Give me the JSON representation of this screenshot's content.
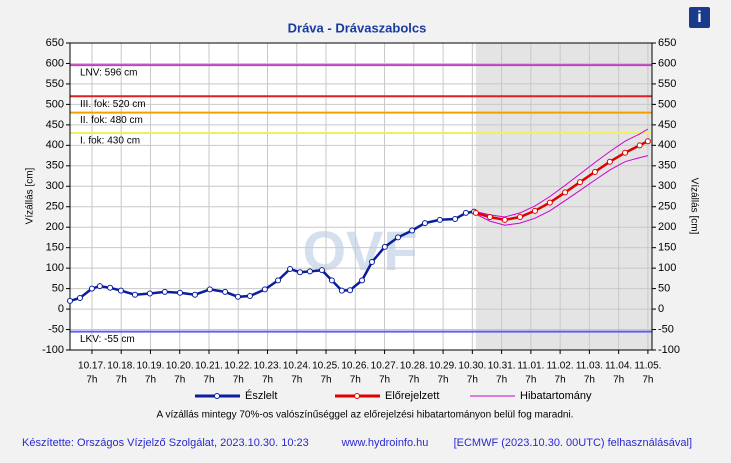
{
  "chart_data": {
    "type": "line",
    "title": "Dráva - Drávaszabolcs",
    "ylabel": "Vízállás [cm]",
    "y2label": "Vízállás [cm]",
    "watermark": "OVF",
    "info_icon": "i",
    "note": "A vízállás mintegy 70%-os valószínűséggel az előrejelzési hibatartományon belül fog maradni.",
    "footer": {
      "left": "Készítette: Országos Vízjelző Szolgálat, 2023.10.30. 10:23",
      "center": "www.hydroinfo.hu",
      "right": "[ECMWF (2023.10.30. 00UTC) felhasználásával]"
    },
    "ylim": [
      -100,
      650
    ],
    "yticks": [
      -100,
      -50,
      0,
      50,
      100,
      150,
      200,
      250,
      300,
      350,
      400,
      450,
      500,
      550,
      600,
      650
    ],
    "y2lim": [
      -100,
      650
    ],
    "y2ticks": [
      -100,
      -50,
      0,
      50,
      100,
      150,
      200,
      250,
      300,
      350,
      400,
      450,
      500,
      550,
      600,
      650
    ],
    "xlim": [
      -0.75,
      19.14
    ],
    "xtick_sublabel": "7h",
    "xticks": [
      {
        "value": 0,
        "label": "10.17."
      },
      {
        "value": 1,
        "label": "10.18."
      },
      {
        "value": 2,
        "label": "10.19."
      },
      {
        "value": 3,
        "label": "10.20."
      },
      {
        "value": 4,
        "label": "10.21."
      },
      {
        "value": 5,
        "label": "10.22."
      },
      {
        "value": 6,
        "label": "10.23."
      },
      {
        "value": 7,
        "label": "10.24."
      },
      {
        "value": 8,
        "label": "10.25."
      },
      {
        "value": 9,
        "label": "10.26."
      },
      {
        "value": 10,
        "label": "10.27."
      },
      {
        "value": 11,
        "label": "10.28."
      },
      {
        "value": 12,
        "label": "10.29."
      },
      {
        "value": 13,
        "label": "10.30."
      },
      {
        "value": 14,
        "label": "10.31."
      },
      {
        "value": 15,
        "label": "11.01."
      },
      {
        "value": 16,
        "label": "11.02."
      },
      {
        "value": 17,
        "label": "11.03."
      },
      {
        "value": 18,
        "label": "11.04."
      },
      {
        "value": 19,
        "label": "11.05."
      }
    ],
    "grid": true,
    "reference_lines": [
      {
        "value": 596,
        "label": "LNV: 596 cm",
        "color": "#c040c0"
      },
      {
        "value": 520,
        "label": "III. fok: 520 cm",
        "color": "#e02020"
      },
      {
        "value": 480,
        "label": "II. fok: 480 cm",
        "color": "#f0a000"
      },
      {
        "value": 430,
        "label": "I. fok: 430 cm",
        "color": "#f0f060"
      },
      {
        "value": -55,
        "label": "LKV: -55 cm",
        "color": "#6060f0"
      }
    ],
    "series": [
      {
        "name": "Észlelt",
        "color": "#0a1e9e",
        "x": [
          -0.75,
          -0.41,
          0,
          0.27,
          0.62,
          0.99,
          1.47,
          1.98,
          2.49,
          3.01,
          3.52,
          4.03,
          4.55,
          4.99,
          5.4,
          5.91,
          6.36,
          6.77,
          7.11,
          7.45,
          7.86,
          8.2,
          8.54,
          8.82,
          9.23,
          9.57,
          10.01,
          10.46,
          10.94,
          11.38,
          11.89,
          12.41,
          12.78,
          13.06
        ],
        "values": [
          20,
          27,
          50,
          56,
          52,
          45,
          35,
          38,
          42,
          40,
          35,
          48,
          42,
          30,
          32,
          48,
          70,
          98,
          90,
          92,
          95,
          70,
          45,
          46,
          70,
          115,
          152,
          175,
          192,
          210,
          218,
          220,
          235,
          238
        ]
      },
      {
        "name": "Előrejelzett",
        "color": "#e00000",
        "x": [
          13.12,
          13.6,
          14.11,
          14.63,
          15.14,
          15.65,
          16.17,
          16.68,
          17.19,
          17.7,
          18.22,
          18.72,
          19.0
        ],
        "values": [
          235,
          225,
          218,
          225,
          240,
          260,
          285,
          310,
          335,
          360,
          382,
          400,
          410
        ]
      },
      {
        "name": "Hibatartomány",
        "color": "#d000d0",
        "x": [
          13.12,
          13.6,
          14.11,
          14.63,
          15.14,
          15.65,
          16.17,
          16.68,
          17.19,
          17.7,
          18.22,
          18.72,
          19.0
        ],
        "upper": [
          238,
          230,
          225,
          235,
          252,
          275,
          302,
          330,
          358,
          385,
          410,
          428,
          440
        ],
        "lower": [
          232,
          215,
          205,
          210,
          222,
          240,
          265,
          290,
          315,
          340,
          360,
          370,
          375
        ]
      }
    ]
  }
}
